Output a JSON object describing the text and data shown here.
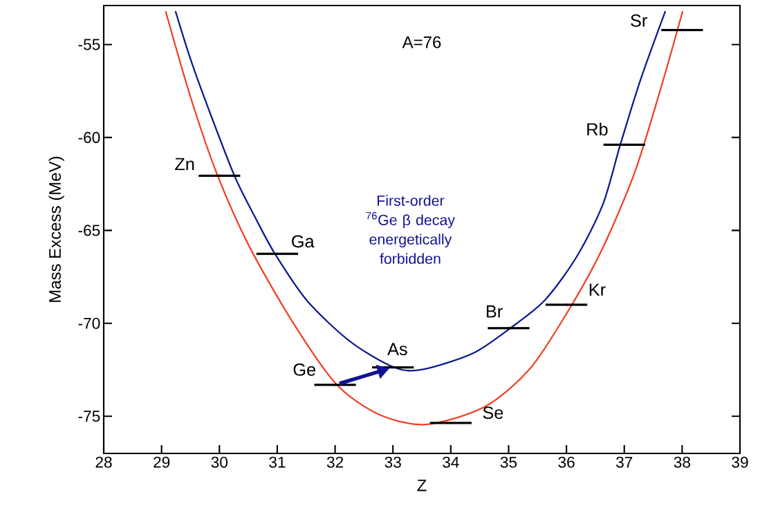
{
  "chart_data": {
    "type": "line",
    "xlabel": "Z",
    "ylabel": "Mass Excess (MeV)",
    "xlim": [
      28,
      39
    ],
    "ylim": [
      -77,
      -52.9
    ],
    "xticks": [
      28,
      29,
      30,
      31,
      32,
      33,
      34,
      35,
      36,
      37,
      38,
      39
    ],
    "yticks": [
      -75,
      -70,
      -65,
      -60,
      -55
    ],
    "grid": false,
    "marker": "none",
    "line_style": "solid",
    "series": [
      {
        "color": "#0b1a8f",
        "x": [
          29.24,
          29.5,
          29.81,
          30.26,
          30.61,
          30.96,
          31.52,
          32.27,
          33.03,
          33.52,
          34.38,
          35.03,
          35.63,
          36.18,
          36.63,
          36.93,
          37.28,
          37.71
        ],
        "values": [
          -53.2,
          -55.78,
          -58.45,
          -62.06,
          -64.25,
          -66.26,
          -68.8,
          -71.0,
          -72.38,
          -72.48,
          -71.62,
          -70.26,
          -68.74,
          -66.4,
          -63.6,
          -60.4,
          -56.9,
          -53.2
        ]
      },
      {
        "color": "#ef4123",
        "x": [
          29.07,
          29.5,
          29.96,
          30.51,
          31.26,
          32.02,
          32.77,
          33.57,
          34.58,
          35.38,
          36.1,
          36.63,
          37.18,
          37.63,
          38.01
        ],
        "values": [
          -53.2,
          -57.82,
          -61.98,
          -65.82,
          -69.9,
          -73.27,
          -74.92,
          -75.44,
          -74.5,
          -72.4,
          -68.97,
          -65.93,
          -61.88,
          -57.37,
          -53.2
        ]
      },
      {
        "type": "scatter",
        "color": "#000000",
        "x": [
          30,
          31,
          32,
          33,
          34,
          35,
          36,
          37,
          38
        ],
        "values": [
          -62.06,
          -66.26,
          -73.31,
          -72.37,
          -75.36,
          -70.26,
          -69.0,
          -60.39,
          -54.22
        ],
        "xerrors": [
          0.36,
          0.36,
          0.36,
          0.36,
          0.36,
          0.36,
          0.36,
          0.36,
          0.36
        ]
      }
    ],
    "annotations": [
      "A=76",
      "First-order $^{76}$Ge β decay energetically forbidden",
      {
        "text": "Zn",
        "x": 30,
        "y": -62.06
      },
      {
        "text": "Ga",
        "x": 31,
        "y": -66.26
      },
      {
        "text": "Ge",
        "x": 32,
        "y": -73.31
      },
      {
        "text": "As",
        "x": 33,
        "y": -72.37
      },
      {
        "text": "Se",
        "x": 34,
        "y": -75.36
      },
      {
        "text": "Br",
        "x": 35,
        "y": -70.26
      },
      {
        "text": "Kr",
        "x": 36,
        "y": -69.0
      },
      {
        "text": "Rb",
        "x": 37,
        "y": -60.39
      },
      {
        "text": "Sr",
        "x": 38,
        "y": -54.22
      }
    ]
  }
}
